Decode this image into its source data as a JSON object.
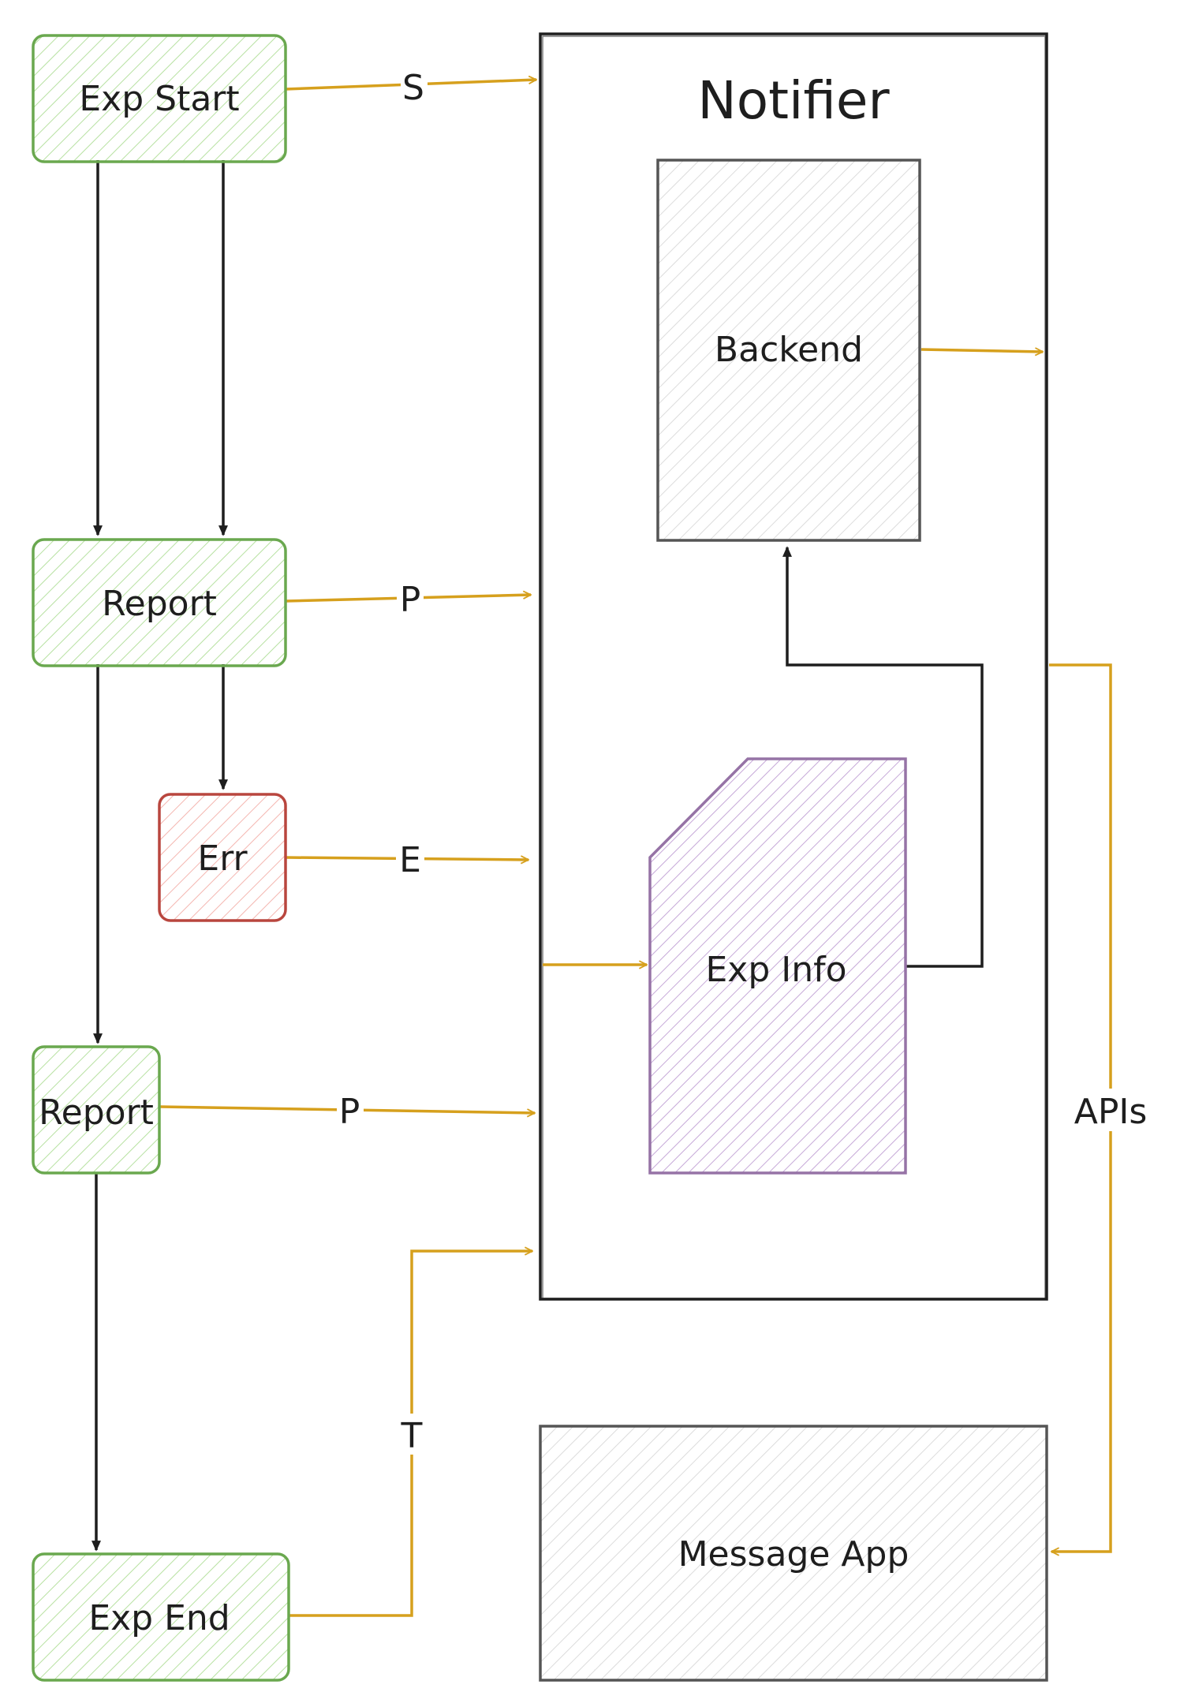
{
  "container": {
    "title": "Notifier"
  },
  "nodes": {
    "exp_start": "Exp Start",
    "report_1": "Report",
    "err": "Err",
    "report_2": "Report",
    "exp_end": "Exp End",
    "backend": "Backend",
    "exp_info": "Exp Info",
    "message_app": "Message App"
  },
  "edges": {
    "start_label": "S",
    "progress_label_1": "P",
    "error_label": "E",
    "progress_label_2": "P",
    "end_label": "T",
    "apis_label": "APIs"
  },
  "colors": {
    "green_stroke": "#6aa84f",
    "green_fill": "#b7e1a1",
    "red_stroke": "#b9463e",
    "red_fill": "#f4b6b0",
    "purple_stroke": "#9673a6",
    "purple_fill": "#d0b8e0",
    "gray_stroke": "#555555",
    "gray_fill": "#d9d9d9",
    "orange_arrow": "#d6a01d",
    "black_arrow": "#1e1e1e"
  }
}
